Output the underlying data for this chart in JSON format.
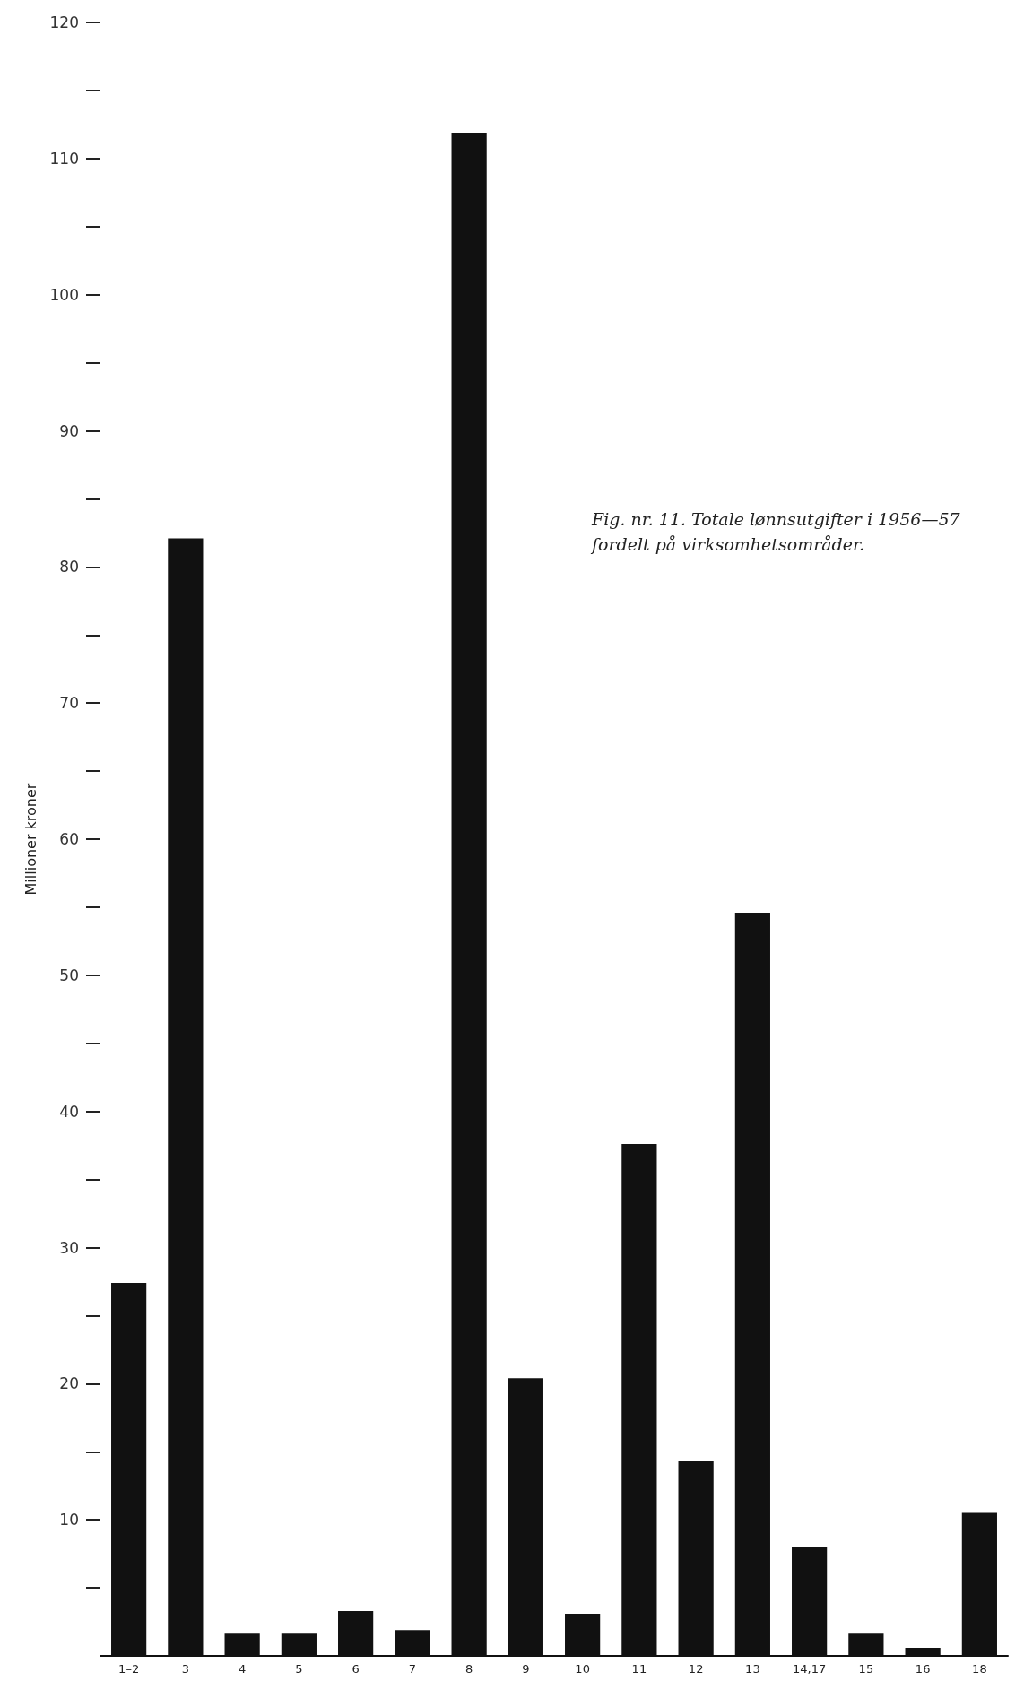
{
  "chart_data": {
    "type": "bar",
    "title": "Fig. nr. 11. Totale lønnsutgifter i 1956—57 fordelt på virksomhetsområder.",
    "ylabel": "Millioner kroner",
    "categories": [
      "1–2",
      "3",
      "4",
      "5",
      "6",
      "7",
      "8",
      "9",
      "10",
      "11",
      "12",
      "13",
      "14,17",
      "15",
      "16",
      "18"
    ],
    "values": [
      27.4,
      82.1,
      1.7,
      1.7,
      3.3,
      1.9,
      111.9,
      20.4,
      3.1,
      37.6,
      14.3,
      54.6,
      8.0,
      1.7,
      0.6,
      10.5
    ],
    "color": "#111111",
    "ylim": [
      0,
      120
    ],
    "yticks": [
      {
        "value": 5,
        "label": null
      },
      10,
      {
        "value": 15,
        "label": null
      },
      20,
      {
        "value": 25,
        "label": null
      },
      30,
      {
        "value": 35,
        "label": null
      },
      40,
      {
        "value": 45,
        "label": null
      },
      50,
      {
        "value": 55,
        "label": null
      },
      60,
      {
        "value": 65,
        "label": null
      },
      70,
      {
        "value": 75,
        "label": null
      },
      80,
      {
        "value": 85,
        "label": null
      },
      90,
      {
        "value": 95,
        "label": null
      },
      100,
      {
        "value": 105,
        "label": null
      },
      110,
      {
        "value": 115,
        "label": null
      },
      120
    ],
    "grid": false
  }
}
